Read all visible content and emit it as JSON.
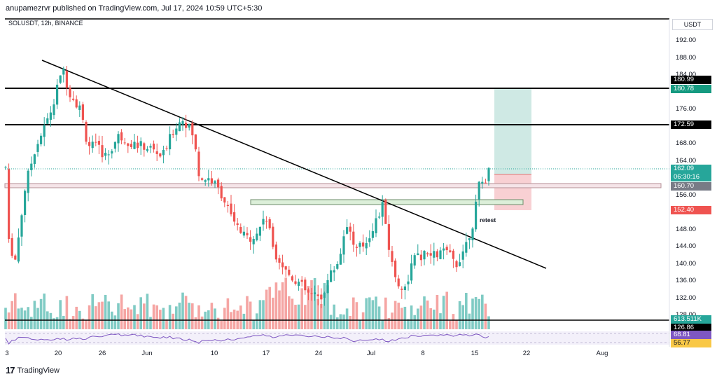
{
  "header": {
    "text": "anupamezrvr published on TradingView.com, Jul 17, 2024 10:59 UTC+5:30"
  },
  "symbol": {
    "text": "SOLUSDT, 12h, BINANCE"
  },
  "currency": "USDT",
  "annotation": {
    "retest": "retest"
  },
  "footer": {
    "brand": "TradingView",
    "logo": "17"
  },
  "price_axis": [
    "192.00",
    "188.00",
    "184.00",
    "176.00",
    "168.00",
    "164.00",
    "156.00",
    "148.00",
    "144.00",
    "140.00",
    "136.00",
    "132.00",
    "128.00"
  ],
  "date_axis": [
    "3",
    "20",
    "26",
    "Jun",
    "10",
    "17",
    "24",
    "Jul",
    "8",
    "15",
    "22",
    "Aug"
  ],
  "price_labels": {
    "l180_99": "180.99",
    "l180_78": "180.78",
    "l172_59": "172.59",
    "l162_09": "162.09",
    "l_timer": "06:30:16",
    "l160_70": "160.70",
    "l152_40": "152.40",
    "l_vol": "613.511K",
    "l126_86": "126.86",
    "l68_81": "68.81",
    "l56_77": "56.77"
  },
  "colors": {
    "up": "#26a69a",
    "down": "#ef5350",
    "vol_up": "#80cbc4",
    "vol_down": "#f5a5a3",
    "profit_zone": "#cfe9e4",
    "loss_zone": "#f8d0d3",
    "rsi": "#7e57c2"
  },
  "chart_data": {
    "type": "candlestick",
    "levels": [
      180.99,
      172.59
    ],
    "zones": [
      {
        "from": 158.8,
        "to": 159.9
      },
      {
        "from": 154.5,
        "to": 155.5
      }
    ],
    "trade": {
      "entry": 160.7,
      "target": 180.78,
      "stop": 152.4
    },
    "last_price": 162.09,
    "seed": 7
  }
}
